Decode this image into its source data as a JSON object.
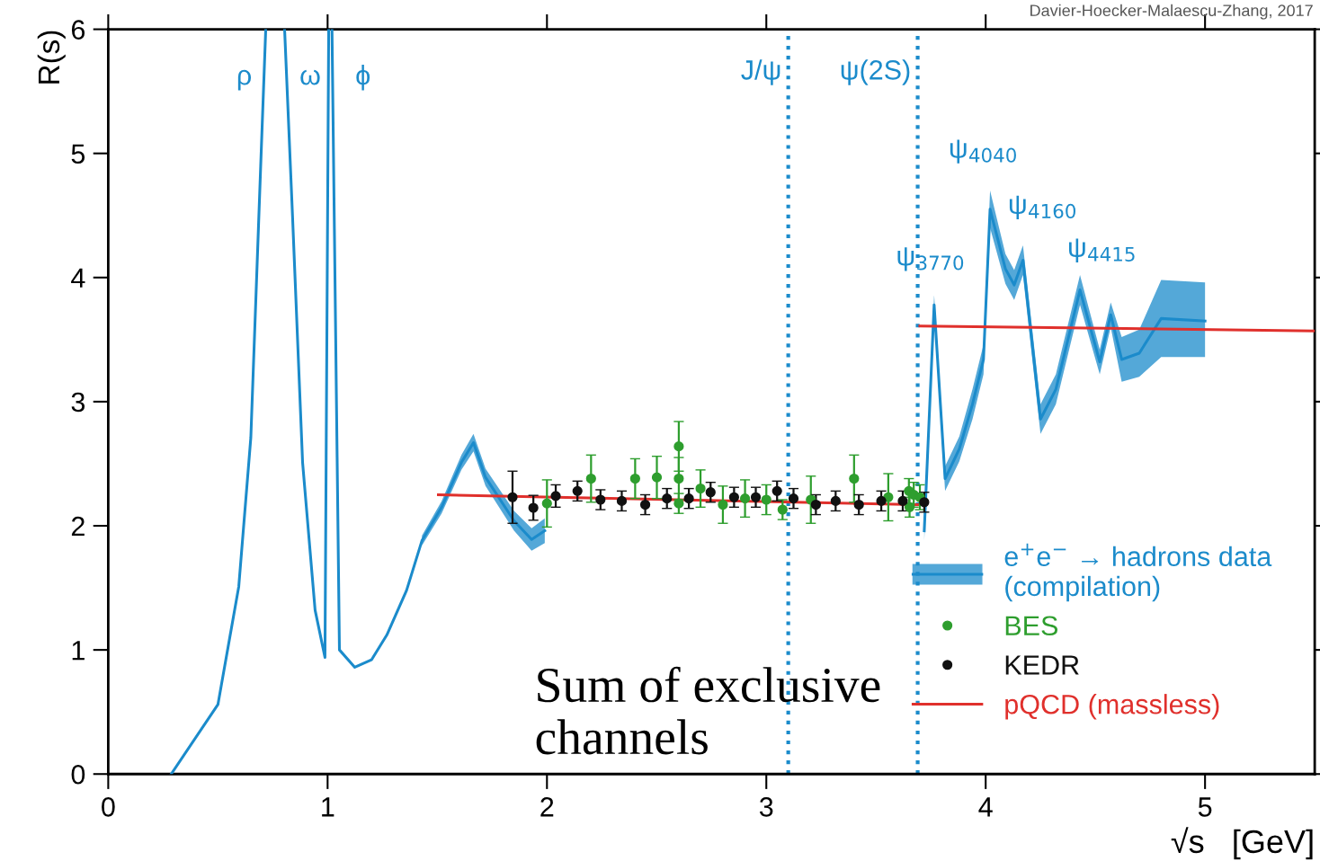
{
  "chart_data": {
    "type": "line",
    "xlabel": "√s   [GeV]",
    "ylabel": "R(s)",
    "xlim": [
      0,
      5.5
    ],
    "ylim": [
      0,
      6
    ],
    "xticks": [
      0,
      1,
      2,
      3,
      4,
      5
    ],
    "yticks": [
      0,
      1,
      2,
      3,
      4,
      5,
      6
    ],
    "grid": false,
    "legend": "bottom right",
    "line_style": "solid",
    "annotations": [
      "Davier-Hoecker-Malaescu-Zhang, 2017",
      "Sum of exclusive\nchannels",
      "ρ",
      "ω",
      "ϕ",
      "ψ$_{3770}$",
      "ψ$_{4040}$",
      "ψ$_{4160}$",
      "ψ$_{4415}$"
    ],
    "ref_lines": [
      {
        "axis": "x",
        "value": 3.1,
        "label": "J/ψ",
        "color": "#1b8bcb",
        "line_style": "dotted"
      },
      {
        "axis": "x",
        "value": 3.69,
        "label": "ψ(2S)",
        "color": "#1b8bcb",
        "line_style": "dotted"
      }
    ],
    "series": [
      {
        "name": "e$^{+}$e$^{−}$ → hadrons data\n(compilation)",
        "color": "#1b8bcb",
        "x": [
          0.287,
          0.5,
          0.595,
          0.65,
          0.695,
          0.718,
          0.76,
          0.804,
          0.84,
          0.886,
          0.943,
          0.988,
          1.005,
          1.012,
          1.02,
          1.054,
          1.124,
          1.2,
          1.27,
          1.36,
          1.43,
          1.52,
          1.61,
          1.665,
          1.72,
          1.85,
          1.93,
          1.99,
          2.5,
          3.72,
          3.765,
          3.815,
          3.88,
          3.94,
          3.99,
          4.02,
          4.09,
          4.13,
          4.17,
          4.25,
          4.32,
          4.43,
          4.52,
          4.57,
          4.62,
          4.7,
          4.8,
          5.0
        ],
        "values": [
          0,
          0.56,
          1.51,
          2.71,
          4.9,
          6,
          null,
          6,
          4.5,
          2.51,
          1.32,
          0.94,
          6,
          null,
          6,
          1.0,
          0.86,
          0.92,
          1.12,
          1.48,
          1.88,
          2.15,
          2.51,
          2.67,
          2.39,
          2.04,
          1.89,
          1.96,
          null,
          1.96,
          3.78,
          2.38,
          2.62,
          2.98,
          3.34,
          4.55,
          4.07,
          3.94,
          4.14,
          2.86,
          3.1,
          3.9,
          3.32,
          3.7,
          3.34,
          3.39,
          3.67,
          3.65
        ],
        "lower": [
          null,
          null,
          null,
          null,
          null,
          null,
          null,
          null,
          null,
          null,
          null,
          null,
          null,
          null,
          null,
          null,
          null,
          null,
          null,
          null,
          1.84,
          2.1,
          2.45,
          2.6,
          2.32,
          1.96,
          1.8,
          1.86,
          null,
          1.88,
          3.7,
          2.28,
          2.52,
          2.86,
          3.22,
          4.4,
          3.95,
          3.82,
          4.02,
          2.74,
          2.98,
          3.78,
          3.22,
          3.6,
          3.16,
          3.2,
          3.36,
          3.36
        ],
        "upper": [
          null,
          null,
          null,
          null,
          null,
          null,
          null,
          null,
          null,
          null,
          null,
          null,
          null,
          null,
          null,
          null,
          null,
          null,
          null,
          null,
          1.92,
          2.2,
          2.57,
          2.74,
          2.46,
          2.12,
          1.98,
          2.06,
          null,
          2.04,
          3.86,
          2.48,
          2.72,
          3.1,
          3.46,
          4.7,
          4.19,
          4.06,
          4.26,
          2.98,
          3.22,
          4.02,
          3.42,
          3.8,
          3.52,
          3.58,
          3.98,
          3.96
        ]
      },
      {
        "name": "BES",
        "type": "scatter",
        "color": "#2e9e2e",
        "marker": "circle",
        "x": [
          2.0,
          2.201,
          2.402,
          2.501,
          2.601,
          2.601,
          2.601,
          2.7,
          2.802,
          2.903,
          3.0,
          3.074,
          3.203,
          3.4,
          3.556,
          3.65,
          3.653,
          3.672,
          3.7
        ],
        "values": [
          2.18,
          2.38,
          2.38,
          2.39,
          2.64,
          2.38,
          2.18,
          2.3,
          2.17,
          2.22,
          2.21,
          2.13,
          2.21,
          2.38,
          2.23,
          2.28,
          2.15,
          2.25,
          2.23
        ],
        "errors": [
          0.19,
          0.19,
          0.16,
          0.17,
          0.2,
          0.17,
          0.08,
          0.15,
          0.15,
          0.15,
          0.12,
          0.08,
          0.19,
          0.19,
          0.19,
          0.1,
          0.08,
          0.1,
          0.1
        ]
      },
      {
        "name": "KEDR",
        "type": "scatter",
        "color": "#111111",
        "marker": "circle",
        "x": [
          1.843,
          1.938,
          2.04,
          2.139,
          2.244,
          2.341,
          2.448,
          2.547,
          2.647,
          2.746,
          2.853,
          2.952,
          3.049,
          3.124,
          3.226,
          3.316,
          3.422,
          3.524,
          3.622,
          3.72
        ],
        "values": [
          2.23,
          2.145,
          2.24,
          2.28,
          2.21,
          2.2,
          2.17,
          2.22,
          2.22,
          2.27,
          2.23,
          2.23,
          2.28,
          2.22,
          2.17,
          2.2,
          2.17,
          2.2,
          2.2,
          2.19
        ],
        "errors": [
          0.21,
          0.1,
          0.09,
          0.08,
          0.08,
          0.08,
          0.08,
          0.08,
          0.08,
          0.08,
          0.08,
          0.08,
          0.08,
          0.08,
          0.08,
          0.08,
          0.08,
          0.08,
          0.08,
          0.08
        ]
      },
      {
        "name": "pQCD (massless)",
        "color": "#e0302c",
        "x": [
          1.505,
          3.69,
          3.695,
          3.7,
          5.5
        ],
        "values": [
          2.25,
          2.17,
          null,
          3.61,
          3.57
        ]
      }
    ]
  }
}
